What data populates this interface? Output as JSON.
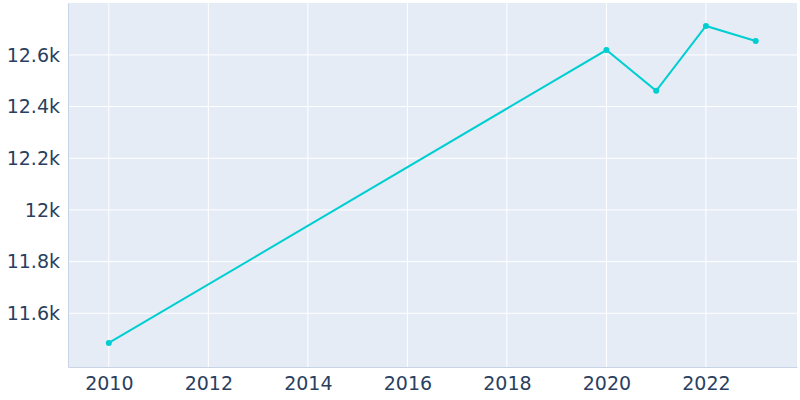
{
  "chart_data": {
    "type": "line",
    "x": [
      2010,
      2020,
      2021,
      2022,
      2023
    ],
    "values": [
      11485,
      12619,
      12461,
      12712,
      12654
    ],
    "color": "#00ced1",
    "marker": "circle",
    "xlim": [
      2009.18,
      2023.83
    ],
    "xticks": [
      2010,
      2012,
      2014,
      2016,
      2018,
      2020,
      2022
    ],
    "ylim": [
      11392,
      12801
    ],
    "yticks": [
      {
        "value": 11600,
        "label": "11.6k"
      },
      {
        "value": 11800,
        "label": "11.8k"
      },
      {
        "value": 12000,
        "label": "12k"
      },
      {
        "value": 12200,
        "label": "12.2k"
      },
      {
        "value": 12400,
        "label": "12.4k"
      },
      {
        "value": 12600,
        "label": "12.6k"
      }
    ],
    "grid": true
  }
}
